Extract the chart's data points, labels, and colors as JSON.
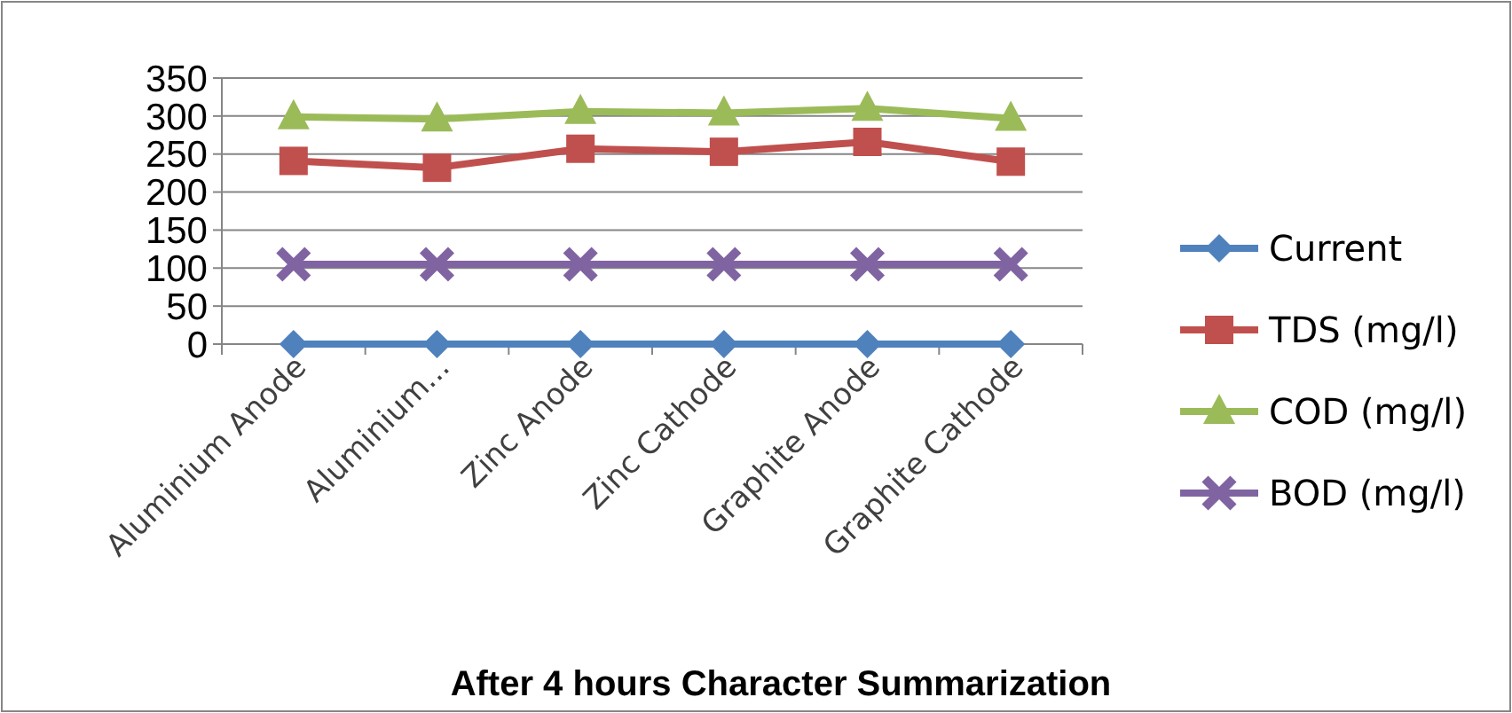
{
  "chart_data": {
    "type": "line",
    "xlabel": "After 4 hours Character Summarization",
    "categories": [
      "Aluminium Anode",
      "Aluminium...",
      "Zinc Anode",
      "Zinc Cathode",
      "Graphite Anode",
      "Graphite Cathode"
    ],
    "series": [
      {
        "name": "Current",
        "color": "#4f81bd",
        "marker": "diamond",
        "values": [
          0,
          0,
          0,
          0,
          0,
          0
        ]
      },
      {
        "name": "TDS (mg/l)",
        "color": "#c0504d",
        "marker": "square",
        "values": [
          241,
          232,
          257,
          253,
          266,
          240
        ]
      },
      {
        "name": "COD (mg/l)",
        "color": "#9bbb59",
        "marker": "triangle",
        "values": [
          299,
          296,
          306,
          304,
          310,
          297
        ]
      },
      {
        "name": "BOD (mg/l)",
        "color": "#8064a2",
        "marker": "cross",
        "values": [
          105,
          105,
          105,
          105,
          105,
          105
        ]
      }
    ],
    "ylim": [
      0,
      350
    ],
    "yticks": [
      0,
      50,
      100,
      150,
      200,
      250,
      300,
      350
    ],
    "grid": "y",
    "legend": "right"
  }
}
